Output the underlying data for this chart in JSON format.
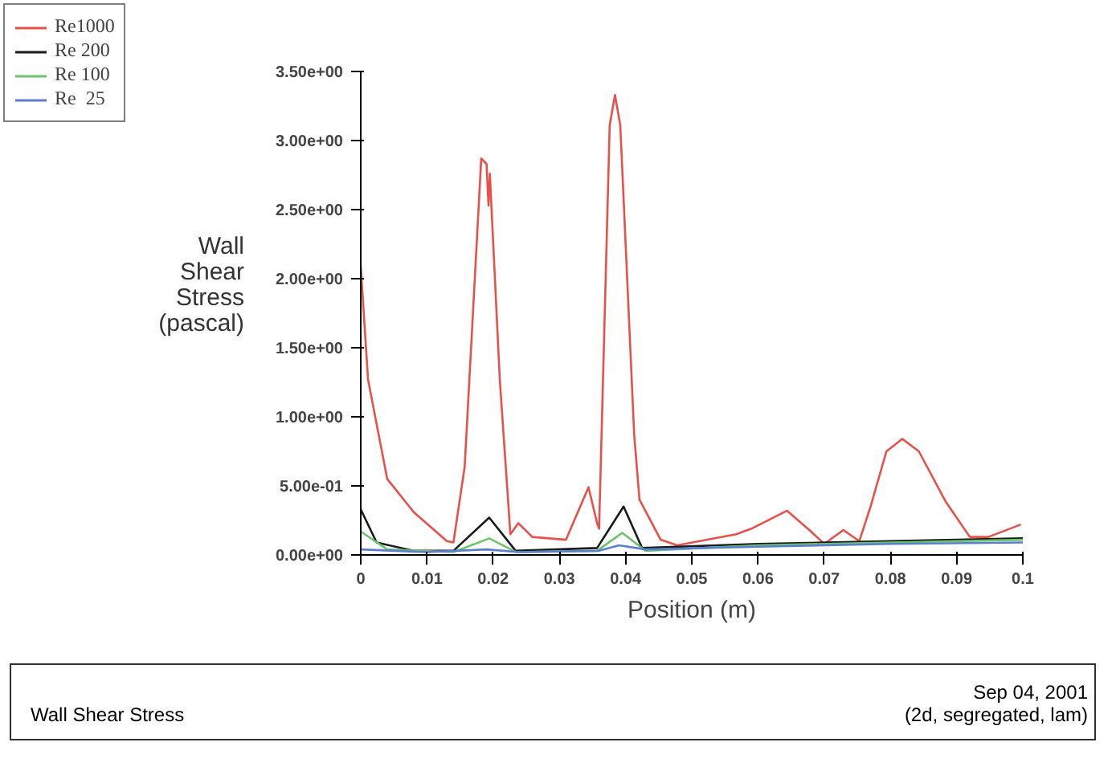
{
  "chart_data": {
    "type": "line",
    "xlabel": "Position (m)",
    "ylabel": "Wall\nShear\nStress\n(pascal)",
    "xlim": [
      0,
      0.1
    ],
    "xticks": [
      0,
      0.01,
      0.02,
      0.03,
      0.04,
      0.05,
      0.06,
      0.07,
      0.08,
      0.09,
      0.1
    ],
    "ylim": [
      0,
      3.5
    ],
    "yticks": [
      {
        "value": 0,
        "label": "0.00e+00"
      },
      {
        "value": 0.5,
        "label": "5.00e-01"
      },
      {
        "value": 1,
        "label": "1.00e+00"
      },
      {
        "value": 1.5,
        "label": "1.50e+00"
      },
      {
        "value": 2,
        "label": "2.00e+00"
      },
      {
        "value": 2.5,
        "label": "2.50e+00"
      },
      {
        "value": 3,
        "label": "3.00e+00"
      },
      {
        "value": 3.5,
        "label": "3.50e+00"
      }
    ],
    "grid": false,
    "legend": "top left",
    "marker": "none",
    "line_style": "solid",
    "series": [
      {
        "name": "Re1000",
        "color": "#e8504a",
        "x": [
          0,
          0.0011,
          0.004,
          0.008,
          0.013,
          0.014,
          0.0157,
          0.0182,
          0.019,
          0.0193,
          0.0195,
          0.021,
          0.0226,
          0.0238,
          0.0259,
          0.031,
          0.0344,
          0.0357,
          0.036,
          0.0376,
          0.0384,
          0.0392,
          0.0413,
          0.0421,
          0.0453,
          0.0478,
          0.0567,
          0.059,
          0.0644,
          0.068,
          0.07,
          0.0729,
          0.0753,
          0.077,
          0.0794,
          0.0818,
          0.0843,
          0.0883,
          0.092,
          0.0948,
          0.0997
        ],
        "values": [
          2.09,
          1.27,
          0.55,
          0.31,
          0.1,
          0.09,
          0.64,
          2.87,
          2.83,
          2.53,
          2.76,
          1.27,
          0.15,
          0.23,
          0.13,
          0.11,
          0.49,
          0.23,
          0.19,
          3.11,
          3.33,
          3.11,
          0.87,
          0.4,
          0.11,
          0.07,
          0.15,
          0.19,
          0.32,
          0.17,
          0.08,
          0.18,
          0.1,
          0.35,
          0.75,
          0.84,
          0.75,
          0.39,
          0.13,
          0.13,
          0.22
        ]
      },
      {
        "name": "Re 200",
        "color": "#1a1a1a",
        "x": [
          0,
          0.0024,
          0.008,
          0.014,
          0.0194,
          0.0234,
          0.0357,
          0.0397,
          0.0425,
          0.06,
          0.08,
          0.1
        ],
        "values": [
          0.33,
          0.09,
          0.03,
          0.03,
          0.27,
          0.03,
          0.05,
          0.35,
          0.05,
          0.08,
          0.1,
          0.12
        ]
      },
      {
        "name": "Re 100",
        "color": "#6cc46a",
        "x": [
          0,
          0.004,
          0.014,
          0.0194,
          0.0235,
          0.0357,
          0.0395,
          0.043,
          0.06,
          0.08,
          0.1
        ],
        "values": [
          0.17,
          0.04,
          0.02,
          0.12,
          0.02,
          0.03,
          0.16,
          0.03,
          0.07,
          0.09,
          0.11
        ]
      },
      {
        "name": "Re  25",
        "color": "#5b7fd0",
        "x": [
          0,
          0.01,
          0.019,
          0.024,
          0.036,
          0.039,
          0.043,
          0.06,
          0.08,
          0.1
        ],
        "values": [
          0.04,
          0.02,
          0.04,
          0.02,
          0.03,
          0.07,
          0.04,
          0.06,
          0.08,
          0.09
        ]
      }
    ],
    "annotations": [
      "Wall Shear Stress",
      "Sep 04, 2001",
      "(2d, segregated, lam)"
    ]
  }
}
